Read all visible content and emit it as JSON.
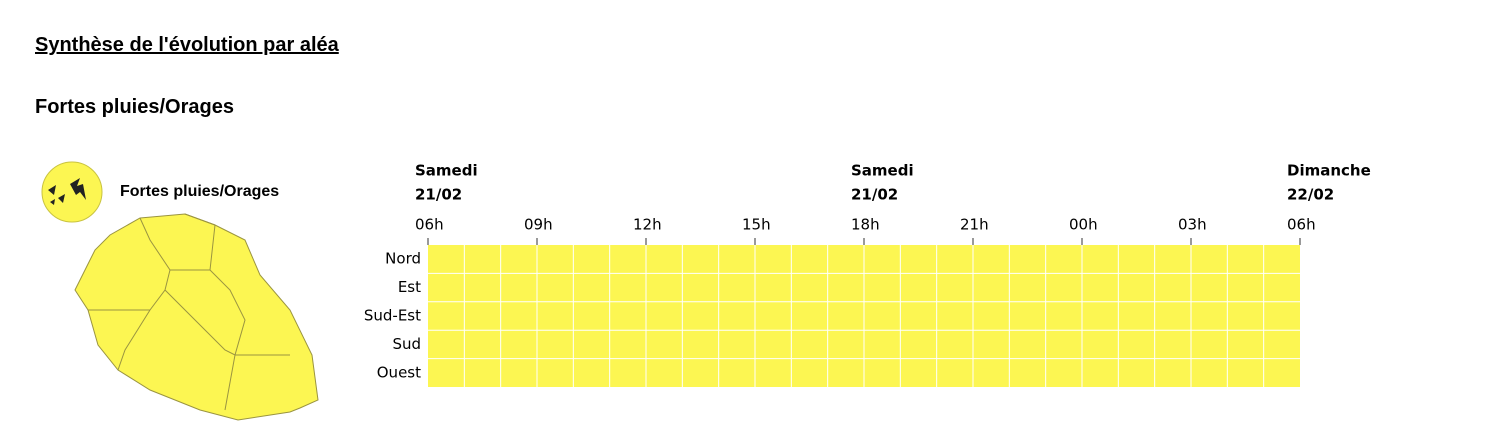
{
  "header": {
    "title": "Synthèse de l'évolution par aléa",
    "subtitle": "Fortes pluies/Orages"
  },
  "legend": {
    "label": "Fortes pluies/Orages",
    "color": "#fcf652"
  },
  "timeline": {
    "dates": [
      {
        "day": "Samedi",
        "date": "21/02"
      },
      {
        "day": "Samedi",
        "date": "21/02"
      },
      {
        "day": "Dimanche",
        "date": "22/02"
      }
    ],
    "hours": [
      "06h",
      "09h",
      "12h",
      "15h",
      "18h",
      "21h",
      "00h",
      "03h",
      "06h"
    ],
    "zones": [
      "Nord",
      "Est",
      "Sud-Est",
      "Sud",
      "Ouest"
    ],
    "level_color": "#fcf652"
  }
}
